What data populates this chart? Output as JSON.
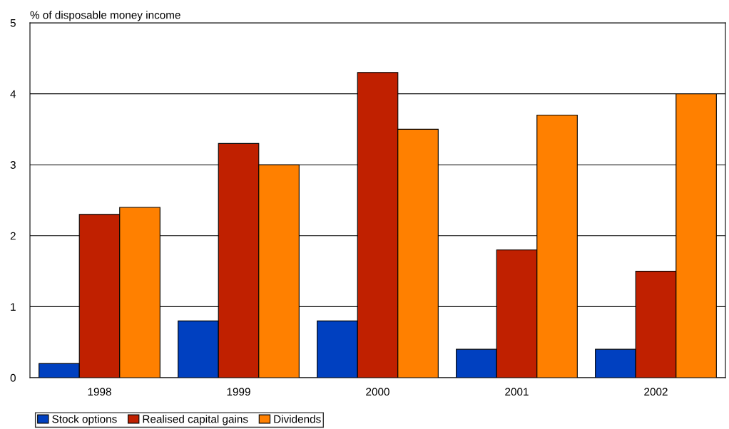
{
  "chart_data": {
    "type": "bar",
    "ylabel": "% of disposable money income",
    "categories": [
      "1998",
      "1999",
      "2000",
      "2001",
      "2002"
    ],
    "series": [
      {
        "name": "Stock options",
        "color": "#0040c0",
        "values": [
          0.2,
          0.8,
          0.8,
          0.4,
          0.4
        ]
      },
      {
        "name": "Realised capital gains",
        "color": "#c02000",
        "values": [
          2.3,
          3.3,
          4.3,
          1.8,
          1.5
        ]
      },
      {
        "name": "Dividends",
        "color": "#ff8000",
        "values": [
          2.4,
          3.0,
          3.5,
          3.7,
          4.0
        ]
      }
    ],
    "ylim": [
      0,
      5
    ],
    "yticks": [
      0,
      1,
      2,
      3,
      4,
      5
    ],
    "grid": "y",
    "legend": "bottom"
  }
}
